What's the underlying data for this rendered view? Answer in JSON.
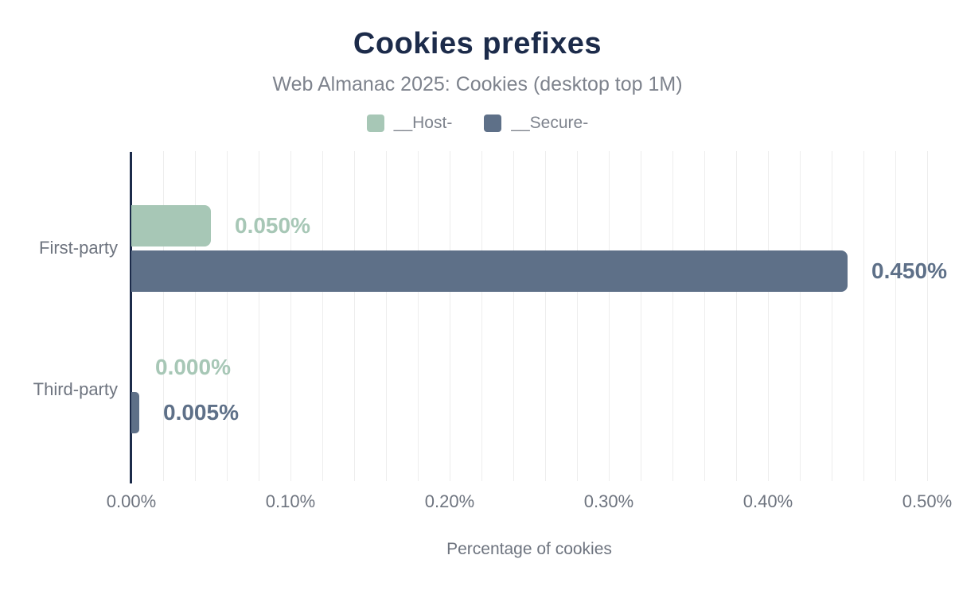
{
  "chart_data": {
    "type": "bar",
    "orientation": "horizontal",
    "title": "Cookies prefixes",
    "subtitle": "Web Almanac 2025: Cookies (desktop top 1M)",
    "xlabel": "Percentage of cookies",
    "categories": [
      "First-party",
      "Third-party"
    ],
    "series": [
      {
        "name": "__Host-",
        "color": "#a7c7b6",
        "values": [
          0.05,
          0.0
        ],
        "labels": [
          "0.050%",
          "0.000%"
        ]
      },
      {
        "name": "__Secure-",
        "color": "#5e7088",
        "values": [
          0.45,
          0.005
        ],
        "labels": [
          "0.450%",
          "0.005%"
        ]
      }
    ],
    "xlim": [
      0,
      0.5
    ],
    "x_ticks": [
      {
        "value": 0.0,
        "label": "0.00%"
      },
      {
        "value": 0.1,
        "label": "0.10%"
      },
      {
        "value": 0.2,
        "label": "0.20%"
      },
      {
        "value": 0.3,
        "label": "0.30%"
      },
      {
        "value": 0.4,
        "label": "0.40%"
      },
      {
        "value": 0.5,
        "label": "0.50%"
      }
    ],
    "grid_step": 0.02,
    "grid": true,
    "legend_position": "top"
  },
  "colors": {
    "title": "#1c2b4a",
    "axis_line": "#1c2b4a",
    "text": "#6e747f",
    "subtitle": "#7e838d",
    "gridline": "#ededed",
    "background": "#ffffff"
  }
}
